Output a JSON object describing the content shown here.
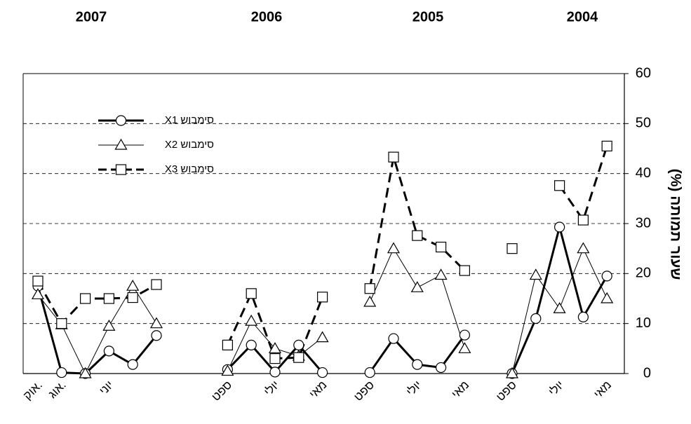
{
  "chart_data": {
    "type": "line",
    "annotations": [
      "2007",
      "2006",
      "2005",
      "2004"
    ],
    "ylabel": "שעור תמותה (%)",
    "categories": [
      "אוק.",
      "אוג.",
      null,
      "יוני",
      null,
      null,
      null,
      null,
      "ספט",
      null,
      "יולי",
      null,
      "מאי",
      null,
      "ספט",
      null,
      "יולי",
      null,
      "מאי",
      null,
      "ספט",
      null,
      "יולי",
      null,
      "מאי"
    ],
    "series": [
      {
        "name": "סימבוש X1",
        "color": "#000000",
        "marker": "circle",
        "linestyle": "thick",
        "values": [
          17.5,
          0.2,
          0,
          4.5,
          1.8,
          7.6,
          null,
          null,
          0.8,
          5.7,
          0.3,
          5.7,
          0.2,
          null,
          0.2,
          7,
          1.8,
          1.2,
          7.7,
          null,
          0,
          11,
          29.3,
          11.3,
          19.5
        ]
      },
      {
        "name": "סימבוש X2",
        "color": "#000000",
        "marker": "triangle",
        "linestyle": "thin",
        "values": [
          15.8,
          9.8,
          0,
          9.5,
          17.5,
          10,
          null,
          null,
          0.5,
          10.5,
          5,
          3.5,
          7.2,
          null,
          14.3,
          25,
          17.2,
          19.7,
          5,
          null,
          0,
          19.7,
          13,
          25,
          15
        ]
      },
      {
        "name": "סימבוש  X3",
        "color": "#000000",
        "marker": "square",
        "linestyle": "dashed",
        "values": [
          18.5,
          10,
          15,
          15,
          15.2,
          17.8,
          null,
          null,
          5.7,
          16,
          3,
          3.2,
          15.3,
          null,
          17,
          43.3,
          27.6,
          25.3,
          20.6,
          null,
          25,
          null,
          37.6,
          30.7,
          45.5
        ]
      }
    ],
    "ylim": [
      0,
      60
    ],
    "yticks": [
      0,
      10,
      20,
      30,
      40,
      50,
      60
    ],
    "y_axis_side": "right",
    "grid": true,
    "legend": "upper left"
  }
}
